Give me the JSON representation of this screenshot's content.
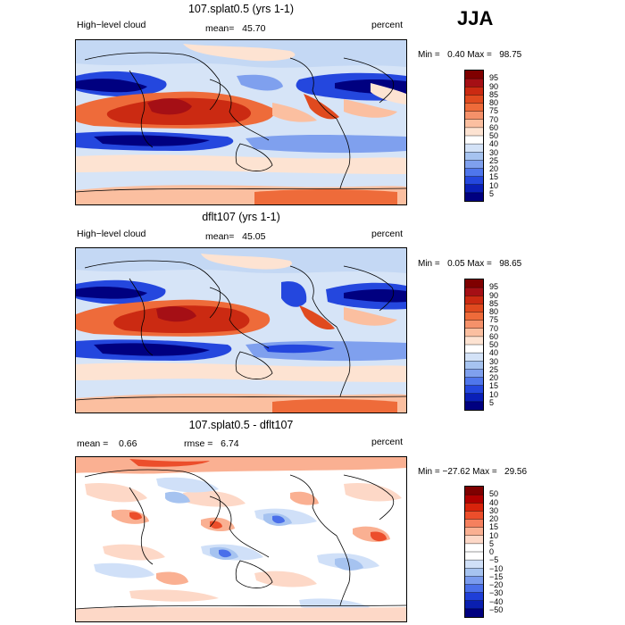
{
  "season": "JJA",
  "panels": [
    {
      "title": "107.splat0.5 (yrs 1-1)",
      "left_label": "High−level cloud",
      "stat_label": "mean=",
      "stat_value": "45.70",
      "units": "percent",
      "min_label": "Min =",
      "min_value": "0.40",
      "max_label": "Max =",
      "max_value": "98.75",
      "colorbar_levels": [
        "95",
        "90",
        "85",
        "80",
        "75",
        "70",
        "60",
        "50",
        "40",
        "30",
        "25",
        "20",
        "15",
        "10",
        "5"
      ]
    },
    {
      "title": "dflt107 (yrs 1-1)",
      "left_label": "High−level cloud",
      "stat_label": "mean=",
      "stat_value": "45.05",
      "units": "percent",
      "min_label": "Min =",
      "min_value": "0.05",
      "max_label": "Max =",
      "max_value": "98.65",
      "colorbar_levels": [
        "95",
        "90",
        "85",
        "80",
        "75",
        "70",
        "60",
        "50",
        "40",
        "30",
        "25",
        "20",
        "15",
        "10",
        "5"
      ]
    },
    {
      "title": "107.splat0.5 - dflt107",
      "mean_label": "mean =",
      "mean_value": "0.66",
      "rmse_label": "rmse =",
      "rmse_value": "6.74",
      "units": "percent",
      "min_label": "Min =",
      "min_value": "−27.62",
      "max_label": "Max =",
      "max_value": "29.56",
      "colorbar_levels": [
        "50",
        "40",
        "30",
        "20",
        "15",
        "10",
        "5",
        "0",
        "−5",
        "−10",
        "−15",
        "−20",
        "−30",
        "−40",
        "−50"
      ]
    }
  ],
  "colors": {
    "abs_scale": [
      "#7f0000",
      "#a50f15",
      "#cb2a12",
      "#e04a1f",
      "#ee6b3a",
      "#f5916a",
      "#fbbfa0",
      "#fde3d2",
      "#ffffff",
      "#d3e2f7",
      "#a6c3f0",
      "#7fa0ee",
      "#4f76ec",
      "#2447de",
      "#0a1fb8",
      "#000080"
    ],
    "diff_scale": [
      "#7f0000",
      "#b00000",
      "#d8230b",
      "#ec4e2b",
      "#f5805e",
      "#fab092",
      "#fdd8c7",
      "#ffffff",
      "#ffffff",
      "#d0e0f8",
      "#a6c3f0",
      "#7a9bee",
      "#4a6fea",
      "#1f3fd8",
      "#0a1fb0",
      "#000080"
    ]
  }
}
